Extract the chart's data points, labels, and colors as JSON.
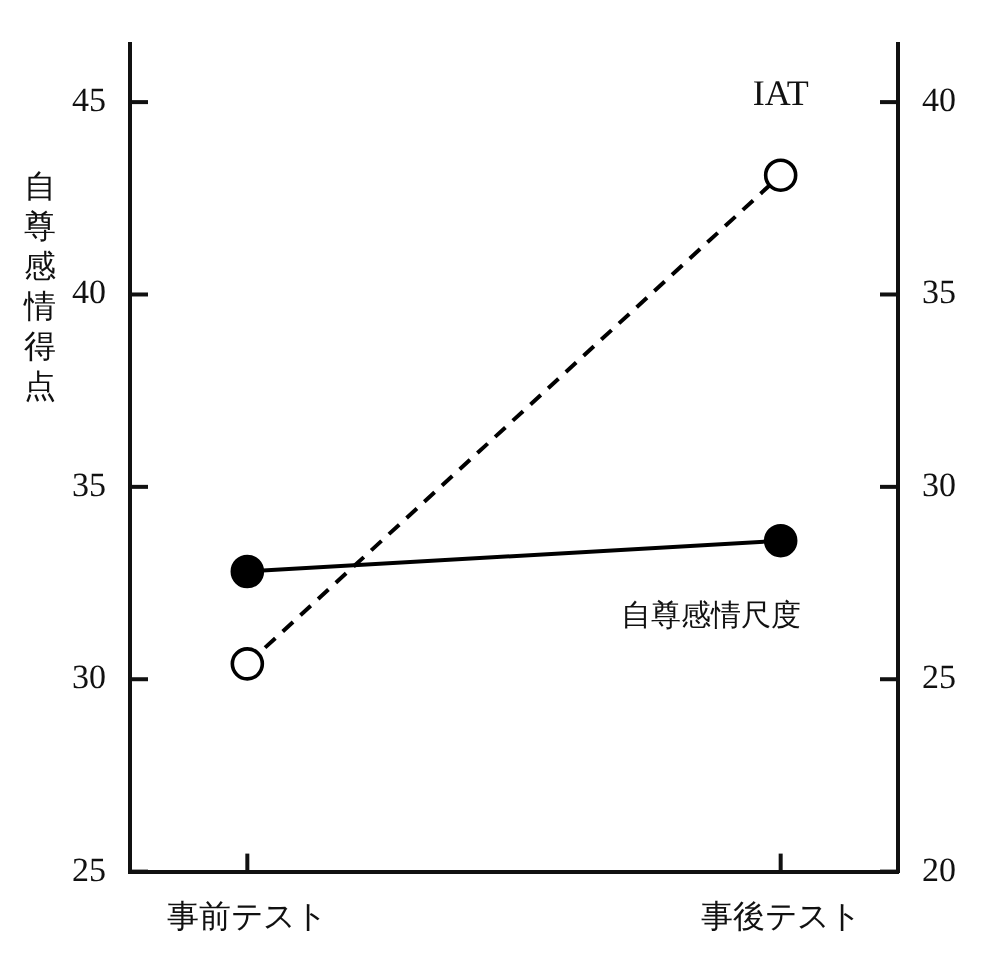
{
  "chart_data": {
    "type": "line",
    "ylabel": "自尊感情得点",
    "categories": [
      "事前テスト",
      "事後テスト"
    ],
    "series": [
      {
        "name": "自尊感情尺度",
        "color": "#000000",
        "values": [
          32.8,
          33.6
        ],
        "line_style": "solid"
      },
      {
        "name": "IAT",
        "color": "#000000",
        "values": [
          25.4,
          38.1
        ],
        "axis": "y2",
        "line_style": "dashed"
      }
    ],
    "ylim": [
      25,
      46.5
    ],
    "yticks": [
      25,
      30,
      35,
      40,
      45
    ],
    "y2lim": [
      20,
      41.5
    ],
    "y2ticks": [
      20,
      25,
      30,
      35,
      40
    ],
    "marker": "circle",
    "grid": false,
    "legend": false
  }
}
